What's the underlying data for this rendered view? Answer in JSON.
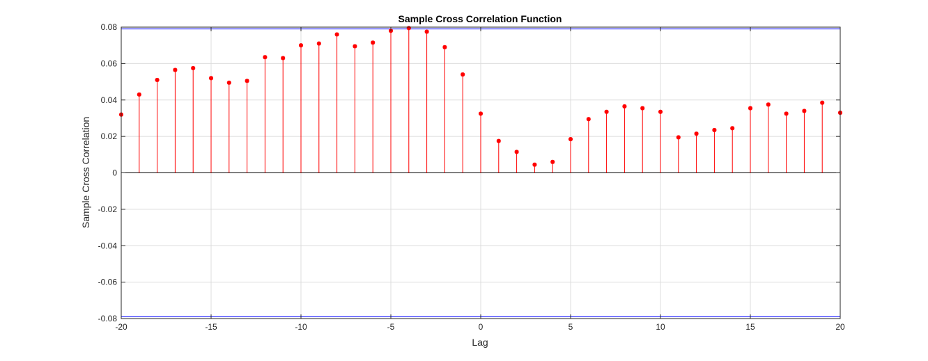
{
  "chart_data": {
    "type": "stem",
    "title": "Sample Cross Correlation Function",
    "xlabel": "Lag",
    "ylabel": "Sample Cross Correlation",
    "xlim": [
      -20,
      20
    ],
    "ylim": [
      -0.08,
      0.08
    ],
    "x_ticks": [
      -20,
      -15,
      -10,
      -5,
      0,
      5,
      10,
      15,
      20
    ],
    "x_tick_labels": [
      "-20",
      "-15",
      "-10",
      "-5",
      "0",
      "5",
      "10",
      "15",
      "20"
    ],
    "y_ticks": [
      -0.08,
      -0.06,
      -0.04,
      -0.02,
      0,
      0.02,
      0.04,
      0.06,
      0.08
    ],
    "y_tick_labels": [
      "-0.08",
      "-0.06",
      "-0.04",
      "-0.02",
      "0",
      "0.02",
      "0.04",
      "0.06",
      "0.08"
    ],
    "grid": true,
    "lags": [
      -20,
      -19,
      -18,
      -17,
      -16,
      -15,
      -14,
      -13,
      -12,
      -11,
      -10,
      -9,
      -8,
      -7,
      -6,
      -5,
      -4,
      -3,
      -2,
      -1,
      0,
      1,
      2,
      3,
      4,
      5,
      6,
      7,
      8,
      9,
      10,
      11,
      12,
      13,
      14,
      15,
      16,
      17,
      18,
      19,
      20
    ],
    "values": [
      0.032,
      0.043,
      0.051,
      0.0565,
      0.0575,
      0.052,
      0.0495,
      0.0505,
      0.0635,
      0.063,
      0.07,
      0.071,
      0.076,
      0.0695,
      0.0715,
      0.078,
      0.0795,
      0.0775,
      0.069,
      0.054,
      0.0325,
      0.0175,
      0.0115,
      0.0045,
      0.006,
      0.0185,
      0.0295,
      0.0335,
      0.0365,
      0.0355,
      0.0335,
      0.0195,
      0.0215,
      0.0235,
      0.0245,
      0.0355,
      0.0375,
      0.0325,
      0.034,
      0.0385,
      0.033
    ],
    "confidence_bounds": [
      0.079,
      -0.079
    ],
    "colors": {
      "stem": "#ff0000",
      "bound": "#0000ff",
      "zero_line": "#000000",
      "grid": "#dcdcdc",
      "axes": "#262626"
    }
  }
}
